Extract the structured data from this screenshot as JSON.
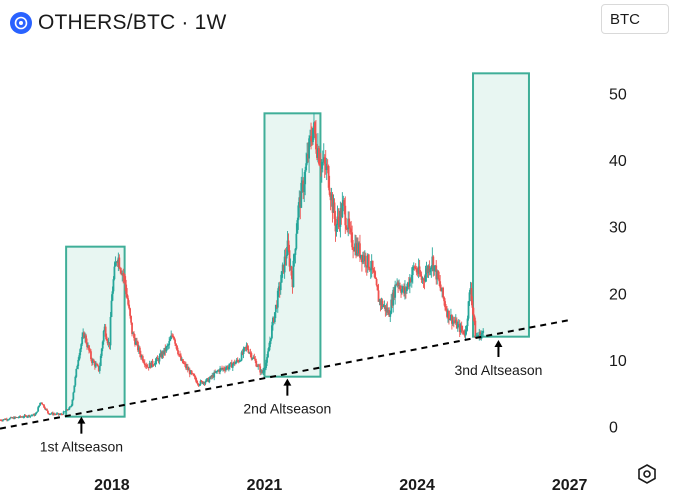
{
  "header": {
    "title": "OTHERS/BTC · 1W",
    "icon": "others-dominance-icon",
    "accent": "#2962ff"
  },
  "currency_selector": {
    "label": "BTC"
  },
  "settings": {
    "icon": "settings-hexagon-icon"
  },
  "chart_data": {
    "type": "candlestick",
    "title": "OTHERS/BTC · 1W",
    "ylim": [
      -2,
      58
    ],
    "y_ticks": [
      0,
      10,
      20,
      30,
      40,
      50
    ],
    "xlim": [
      2015.8,
      2027.4
    ],
    "x_ticks": [
      {
        "value": 2018,
        "label": "2018"
      },
      {
        "value": 2021,
        "label": "2021"
      },
      {
        "value": 2024,
        "label": "2024"
      },
      {
        "value": 2027,
        "label": "2027"
      }
    ],
    "colors": {
      "up": "#26a69a",
      "down": "#ef5350",
      "box_stroke": "#3fae98",
      "box_fill": "#e8f6f2",
      "trend": "#000000"
    },
    "price_path": [
      [
        2015.8,
        1.0
      ],
      [
        2016.5,
        1.8
      ],
      [
        2016.6,
        3.8
      ],
      [
        2016.75,
        2.0
      ],
      [
        2017.0,
        1.8
      ],
      [
        2017.2,
        3.0
      ],
      [
        2017.35,
        11
      ],
      [
        2017.45,
        14
      ],
      [
        2017.6,
        10
      ],
      [
        2017.75,
        8.5
      ],
      [
        2017.85,
        15
      ],
      [
        2017.95,
        12
      ],
      [
        2018.0,
        20
      ],
      [
        2018.1,
        26
      ],
      [
        2018.25,
        22
      ],
      [
        2018.4,
        14
      ],
      [
        2018.55,
        11
      ],
      [
        2018.7,
        9
      ],
      [
        2018.9,
        10
      ],
      [
        2019.1,
        12
      ],
      [
        2019.2,
        14
      ],
      [
        2019.35,
        10
      ],
      [
        2019.5,
        8.5
      ],
      [
        2019.7,
        6.5
      ],
      [
        2019.9,
        7
      ],
      [
        2020.1,
        8.5
      ],
      [
        2020.3,
        9
      ],
      [
        2020.5,
        10
      ],
      [
        2020.65,
        12
      ],
      [
        2020.8,
        10
      ],
      [
        2020.95,
        8
      ],
      [
        2021.05,
        10
      ],
      [
        2021.15,
        15
      ],
      [
        2021.3,
        21
      ],
      [
        2021.45,
        27
      ],
      [
        2021.55,
        22
      ],
      [
        2021.65,
        32
      ],
      [
        2021.8,
        38
      ],
      [
        2021.95,
        45
      ],
      [
        2022.1,
        40
      ],
      [
        2022.25,
        38
      ],
      [
        2022.4,
        30
      ],
      [
        2022.55,
        33
      ],
      [
        2022.7,
        28
      ],
      [
        2022.9,
        26
      ],
      [
        2023.1,
        24
      ],
      [
        2023.25,
        19
      ],
      [
        2023.45,
        17
      ],
      [
        2023.6,
        22
      ],
      [
        2023.75,
        20
      ],
      [
        2023.95,
        24
      ],
      [
        2024.1,
        22
      ],
      [
        2024.3,
        25
      ],
      [
        2024.45,
        21
      ],
      [
        2024.6,
        17
      ],
      [
        2024.8,
        15
      ],
      [
        2024.95,
        14
      ],
      [
        2025.05,
        21
      ],
      [
        2025.15,
        13.5
      ],
      [
        2025.3,
        14
      ]
    ],
    "altseason_boxes": [
      {
        "x0": 2017.1,
        "x1": 2018.25,
        "y0": 1.5,
        "y1": 27
      },
      {
        "x0": 2021.0,
        "x1": 2022.1,
        "y0": 7.5,
        "y1": 47
      },
      {
        "x0": 2025.1,
        "x1": 2026.2,
        "y0": 13.5,
        "y1": 53
      }
    ],
    "trendline": {
      "from": [
        2015.8,
        -0.3
      ],
      "to": [
        2027.0,
        16
      ]
    },
    "annotations": [
      {
        "text": "1st Altseason",
        "arrow_x": 2017.4,
        "arrow_y": 1.5
      },
      {
        "text": "2nd Altseason",
        "arrow_x": 2021.45,
        "arrow_y": 7.2
      },
      {
        "text": "3nd Altseason",
        "arrow_x": 2025.6,
        "arrow_y": 13
      }
    ]
  }
}
